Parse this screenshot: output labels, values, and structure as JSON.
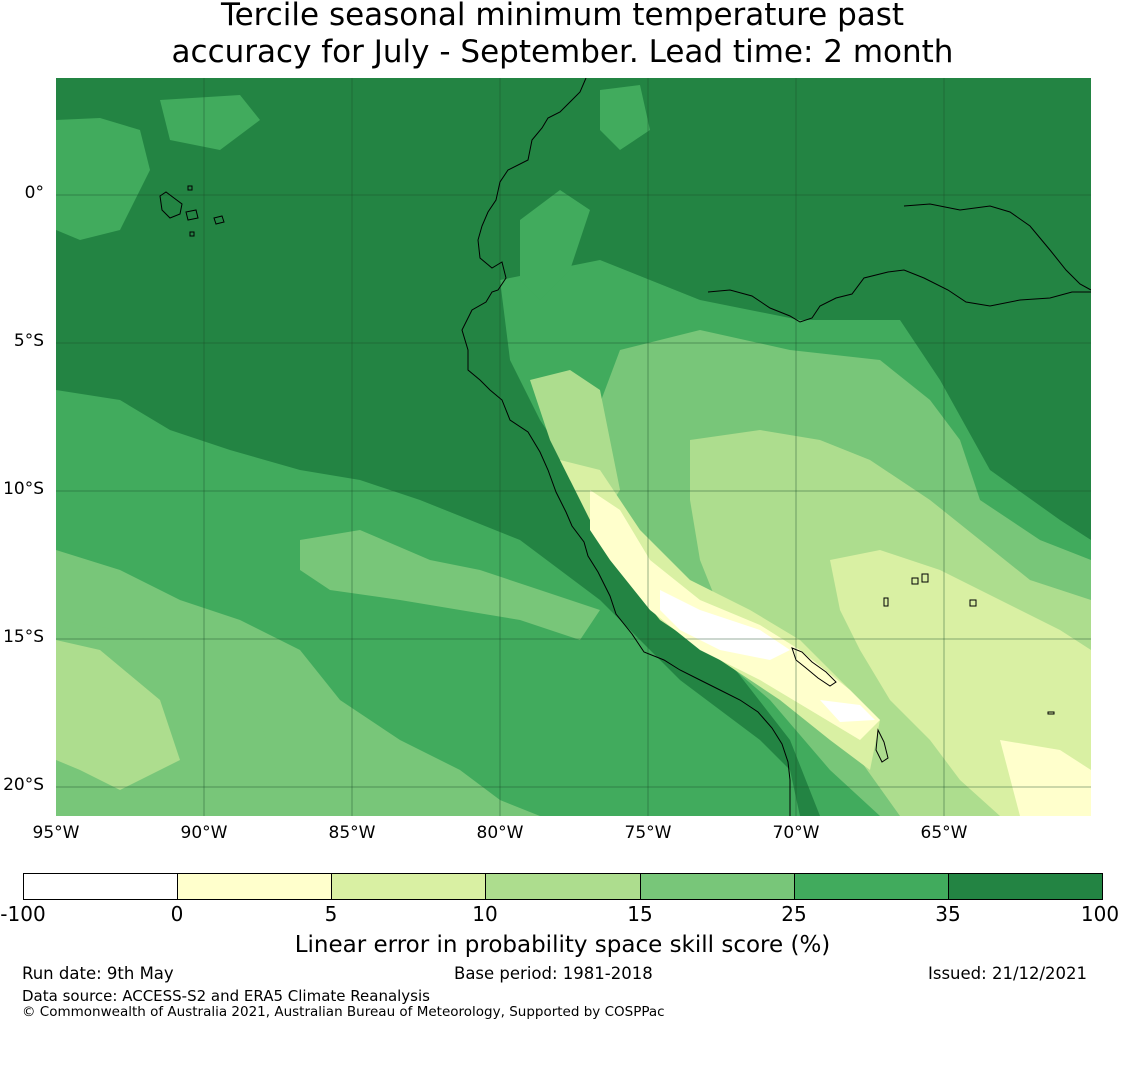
{
  "title": {
    "line1": "Tercile seasonal minimum temperature past",
    "line2": "accuracy for July - September. Lead time: 2 month"
  },
  "map": {
    "lon_labels": [
      "95°W",
      "90°W",
      "85°W",
      "80°W",
      "75°W",
      "70°W",
      "65°W"
    ],
    "lat_labels": [
      "0°",
      "5°S",
      "10°S",
      "15°S",
      "20°S"
    ]
  },
  "colorbar": {
    "label": "Linear error in probability space skill score (%)",
    "ticks": [
      "-100",
      "0",
      "5",
      "10",
      "15",
      "25",
      "35",
      "100"
    ],
    "colors": [
      "#ffffff",
      "#ffffcc",
      "#d9f0a3",
      "#addd8e",
      "#78c679",
      "#41ab5d",
      "#238443"
    ]
  },
  "footer": {
    "run_date": "Run date: 9th May",
    "base_period": "Base period: 1981-2018",
    "issued": "Issued: 21/12/2021",
    "data_source": "Data source: ACCESS-S2 and ERA5 Climate Reanalysis",
    "copyright": "© Commonwealth of Australia 2021, Australian Bureau of Meteorology, Supported by COSPPac"
  }
}
